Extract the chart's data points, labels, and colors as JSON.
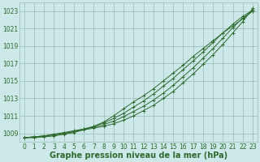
{
  "hours": [
    0,
    1,
    2,
    3,
    4,
    5,
    6,
    7,
    8,
    9,
    10,
    11,
    12,
    13,
    14,
    15,
    16,
    17,
    18,
    19,
    20,
    21,
    22,
    23
  ],
  "line1": [
    1008.5,
    1008.6,
    1008.7,
    1008.9,
    1009.0,
    1009.2,
    1009.4,
    1009.6,
    1009.8,
    1010.1,
    1010.5,
    1011.0,
    1011.6,
    1012.2,
    1013.0,
    1013.8,
    1014.8,
    1015.8,
    1016.9,
    1018.0,
    1019.2,
    1020.5,
    1021.8,
    1023.3
  ],
  "line2": [
    1008.5,
    1008.6,
    1008.7,
    1008.9,
    1009.1,
    1009.3,
    1009.5,
    1009.7,
    1010.0,
    1010.4,
    1010.9,
    1011.5,
    1012.1,
    1012.8,
    1013.6,
    1014.5,
    1015.5,
    1016.5,
    1017.6,
    1018.7,
    1019.9,
    1021.1,
    1022.2,
    1023.0
  ],
  "line3": [
    1008.5,
    1008.6,
    1008.7,
    1008.8,
    1009.0,
    1009.2,
    1009.5,
    1009.8,
    1010.2,
    1010.7,
    1011.3,
    1012.0,
    1012.7,
    1013.5,
    1014.4,
    1015.3,
    1016.3,
    1017.3,
    1018.3,
    1019.4,
    1020.5,
    1021.5,
    1022.4,
    1023.1
  ],
  "line4": [
    1008.5,
    1008.5,
    1008.6,
    1008.7,
    1008.9,
    1009.1,
    1009.4,
    1009.8,
    1010.3,
    1011.0,
    1011.8,
    1012.6,
    1013.3,
    1014.1,
    1015.0,
    1015.9,
    1016.8,
    1017.8,
    1018.7,
    1019.6,
    1020.5,
    1021.3,
    1022.1,
    1023.0
  ],
  "line_color": "#2d6a2d",
  "bg_color": "#cce8e8",
  "grid_color": "#99bbbb",
  "title": "Graphe pression niveau de la mer (hPa)",
  "ylim": [
    1008,
    1024
  ],
  "yticks": [
    1009,
    1011,
    1013,
    1015,
    1017,
    1019,
    1021,
    1023
  ],
  "xticks": [
    0,
    1,
    2,
    3,
    4,
    5,
    6,
    7,
    8,
    9,
    10,
    11,
    12,
    13,
    14,
    15,
    16,
    17,
    18,
    19,
    20,
    21,
    22,
    23
  ],
  "title_fontsize": 7,
  "tick_fontsize": 5.5
}
